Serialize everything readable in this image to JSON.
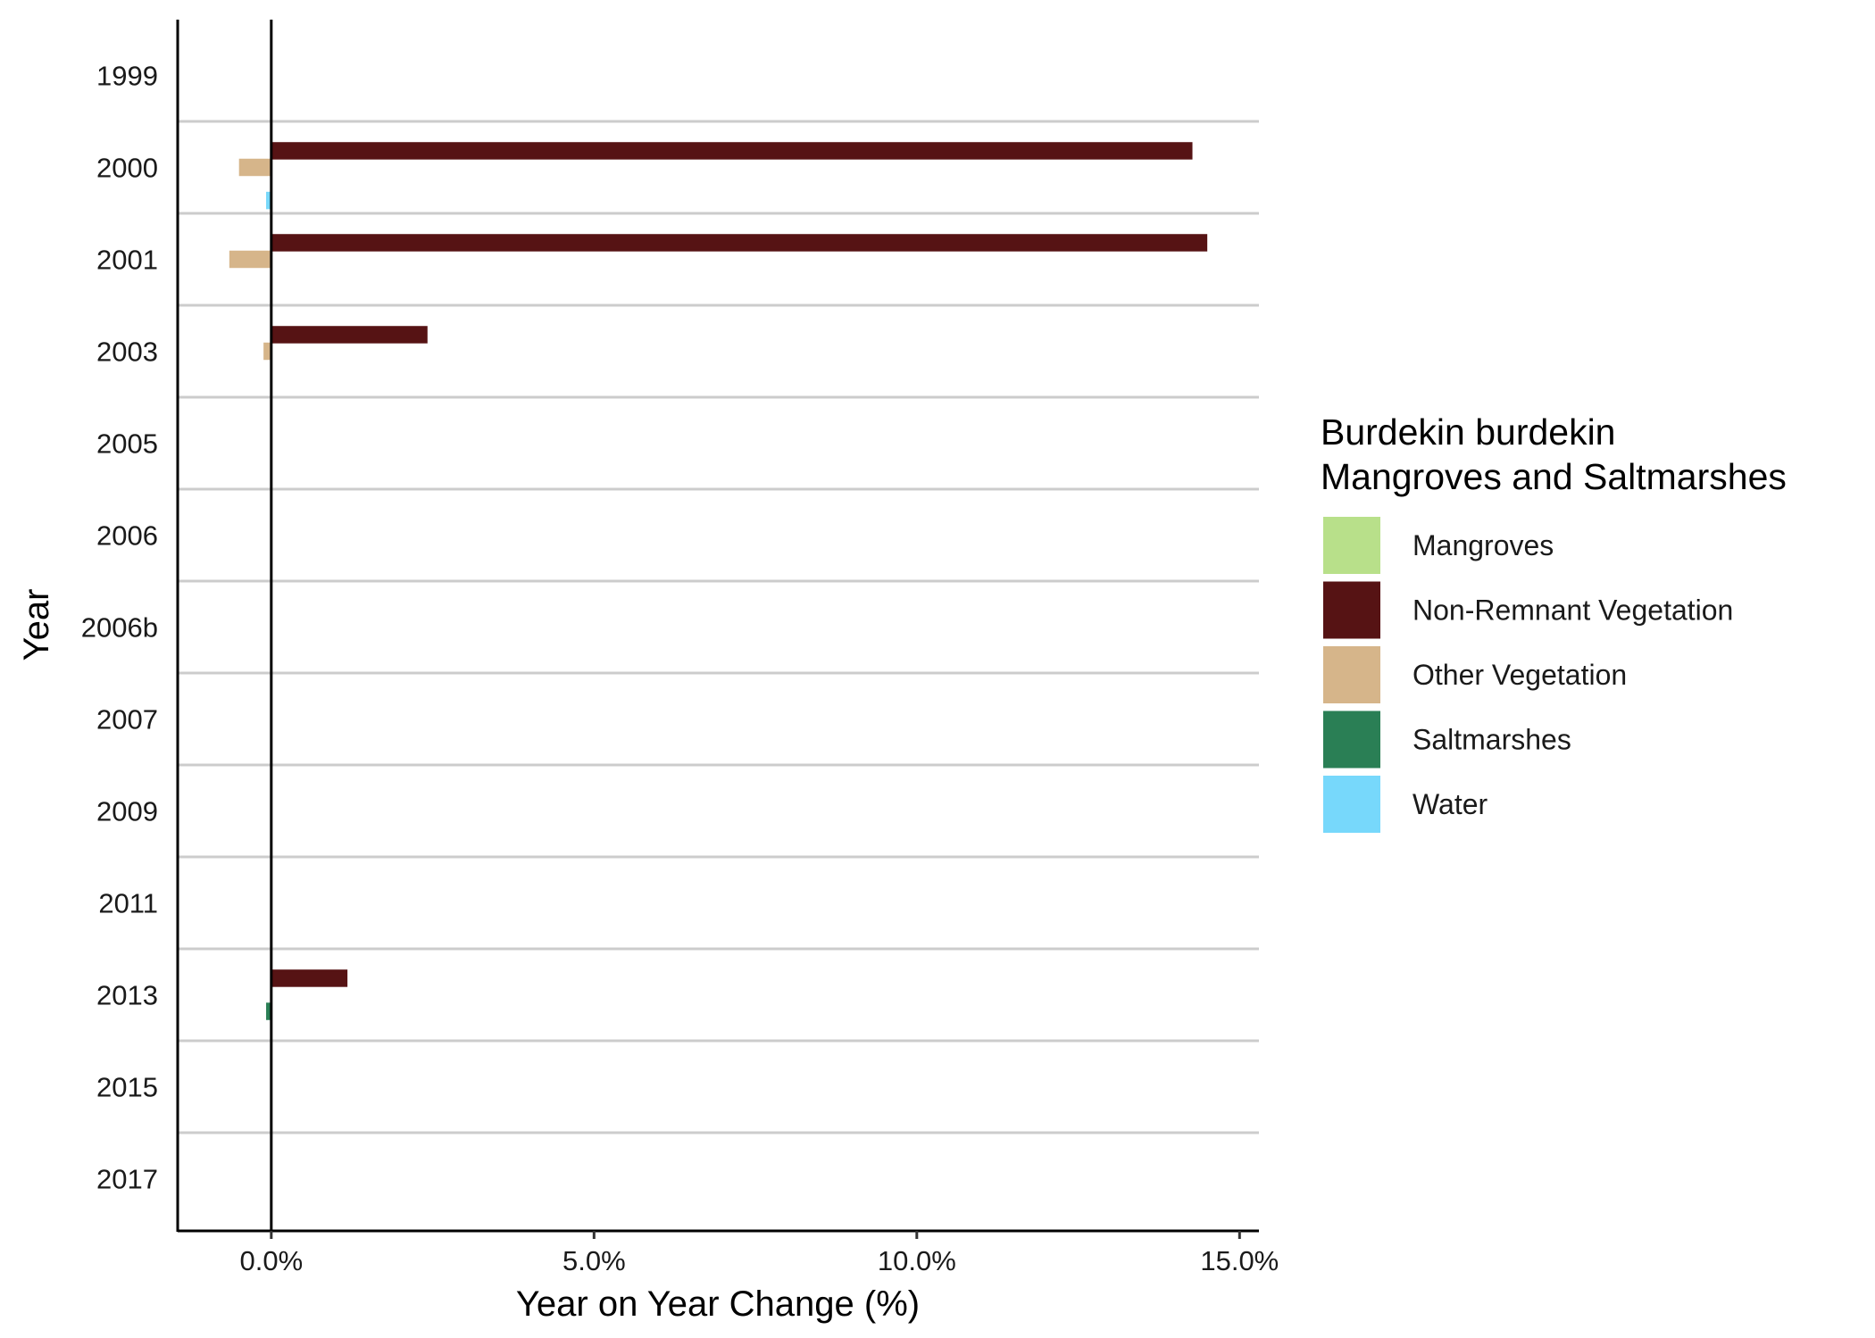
{
  "chart_data": {
    "type": "bar",
    "orientation": "horizontal",
    "categories": [
      "1999",
      "2000",
      "2001",
      "2003",
      "2005",
      "2006",
      "2006b",
      "2007",
      "2009",
      "2011",
      "2013",
      "2015",
      "2017"
    ],
    "series": [
      {
        "name": "Mangroves",
        "color": "#b8e08a",
        "values": [
          0,
          0,
          0,
          0,
          0,
          0,
          0,
          0,
          0,
          0,
          0,
          0,
          0
        ]
      },
      {
        "name": "Non-Remnant Vegetation",
        "color": "#561314",
        "values": [
          0,
          14.27,
          14.5,
          2.42,
          0,
          0,
          0,
          0,
          0,
          0,
          1.18,
          0,
          0
        ]
      },
      {
        "name": "Other Vegetation",
        "color": "#d6b58a",
        "values": [
          0,
          -0.5,
          -0.65,
          -0.12,
          0,
          0,
          0,
          0,
          0,
          0,
          0,
          0,
          0
        ]
      },
      {
        "name": "Saltmarshes",
        "color": "#2a7f55",
        "values": [
          0,
          0,
          0,
          0,
          0,
          0,
          0,
          0,
          0,
          0,
          -0.08,
          0,
          0
        ]
      },
      {
        "name": "Water",
        "color": "#77d8fb",
        "values": [
          0,
          -0.08,
          0,
          0,
          0,
          0,
          0,
          0,
          0,
          0,
          0,
          0,
          0
        ]
      }
    ],
    "xlabel": "Year on Year Change (%)",
    "ylabel": "Year",
    "xlim": [
      -1.45,
      15.3
    ],
    "xticks": [
      0,
      5,
      10,
      15
    ],
    "xtick_labels": [
      "0.0%",
      "5.0%",
      "10.0%",
      "15.0%"
    ],
    "legend_title": [
      "Burdekin burdekin",
      "Mangroves and Saltmarshes"
    ],
    "legend_position": "right",
    "grid": "horizontal separators between years"
  }
}
